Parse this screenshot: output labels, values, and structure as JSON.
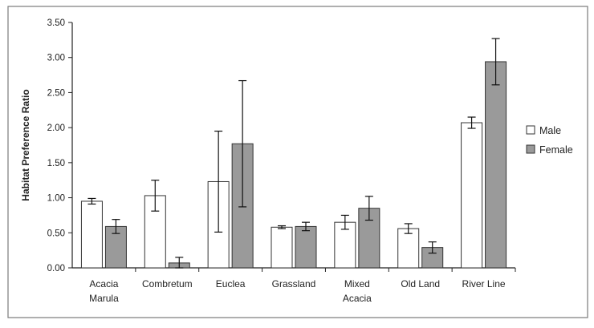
{
  "chart_data": {
    "type": "bar",
    "ylabel": "Habitat Preference Ratio",
    "xlabel": "",
    "ylim": [
      0,
      3.5
    ],
    "yticks": [
      "0.00",
      "0.50",
      "1.00",
      "1.50",
      "2.00",
      "2.50",
      "3.00",
      "3.50"
    ],
    "grid": false,
    "legend_position": "right",
    "categories": [
      [
        "Acacia",
        "Marula"
      ],
      [
        "Combretum"
      ],
      [
        "Euclea"
      ],
      [
        "Grassland"
      ],
      [
        "Mixed",
        "Acacia"
      ],
      [
        "Old Land"
      ],
      [
        "River Line"
      ]
    ],
    "series": [
      {
        "name": "Male",
        "color": "#ffffff",
        "values": [
          0.95,
          1.03,
          1.23,
          0.58,
          0.65,
          0.56,
          2.07
        ],
        "error": [
          0.04,
          0.22,
          0.72,
          0.02,
          0.1,
          0.07,
          0.08
        ]
      },
      {
        "name": "Female",
        "color": "#9a9a9a",
        "values": [
          0.59,
          0.07,
          1.77,
          0.59,
          0.85,
          0.29,
          2.94
        ],
        "error": [
          0.1,
          0.08,
          0.9,
          0.06,
          0.17,
          0.08,
          0.33
        ]
      }
    ]
  }
}
